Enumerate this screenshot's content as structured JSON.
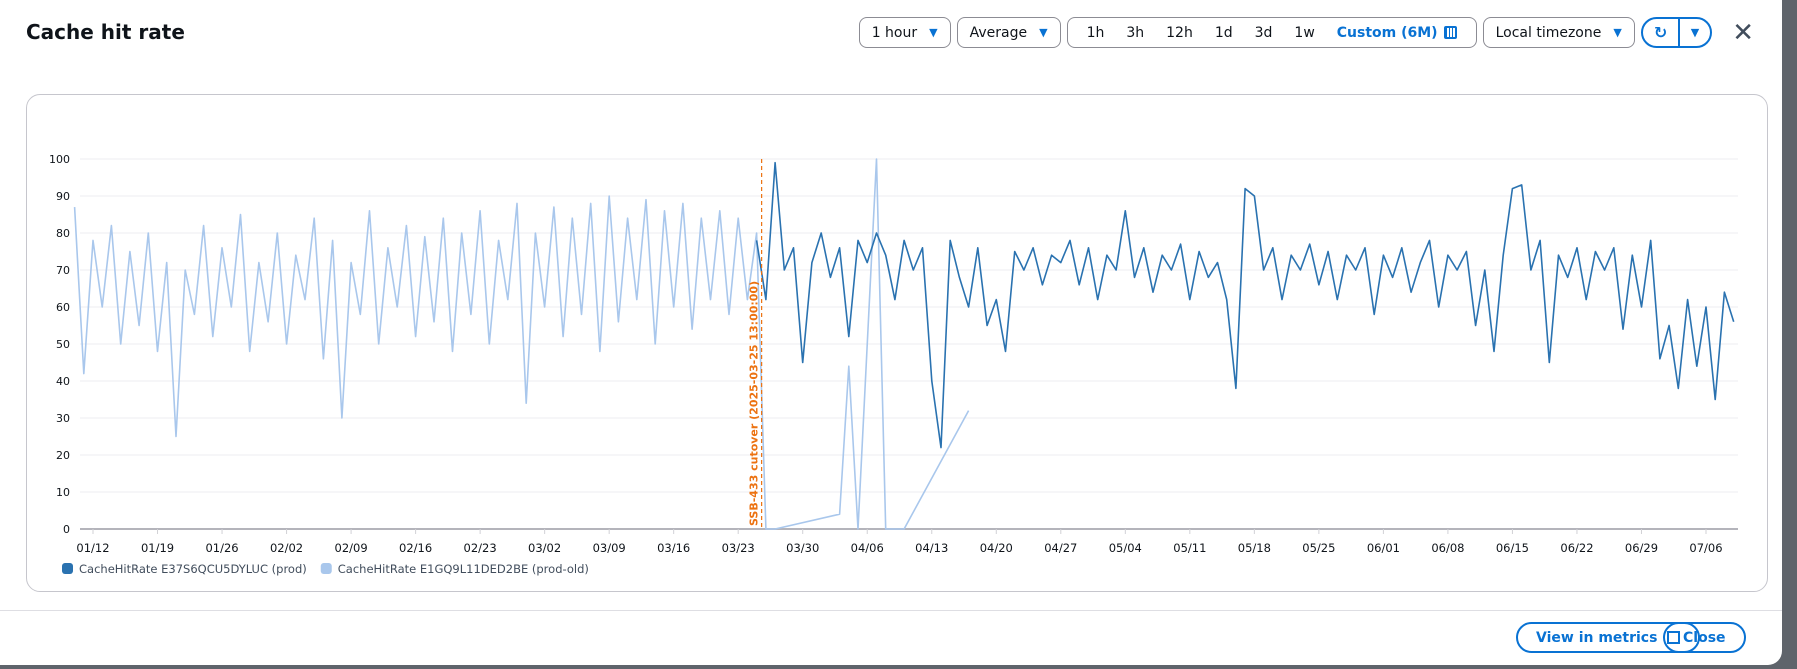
{
  "dialog": {
    "title": "Cache hit rate",
    "period": "1 hour",
    "statistic": "Average",
    "ranges": [
      "1h",
      "3h",
      "12h",
      "1d",
      "3d",
      "1w",
      "Custom (6M)"
    ],
    "active_range": "Custom (6M)",
    "timezone": "Local timezone",
    "view_in_metrics": "View in metrics",
    "close": "Close"
  },
  "colors": {
    "prod": "#2a72b0",
    "prod_old": "#a9c7ec",
    "annotation": "#ec7211",
    "accent": "#0972d3"
  },
  "chart_data": {
    "type": "line",
    "ylim": [
      0,
      100
    ],
    "yticks": [
      0,
      10,
      20,
      30,
      40,
      50,
      60,
      70,
      80,
      90,
      100
    ],
    "grid": true,
    "legend": "bottom-left",
    "xticks": [
      "01/12",
      "01/19",
      "01/26",
      "02/02",
      "02/09",
      "02/16",
      "02/23",
      "03/02",
      "03/09",
      "03/16",
      "03/23",
      "03/30",
      "04/06",
      "04/13",
      "04/20",
      "04/27",
      "05/04",
      "05/11",
      "05/18",
      "05/25",
      "06/01",
      "06/08",
      "06/15",
      "06/22",
      "06/29",
      "07/06"
    ],
    "annotation": {
      "label": "SSB-433 cutover (2025-03-25 13:00:00)",
      "date": "03/25",
      "time": "13:00"
    },
    "series": [
      {
        "name": "CacheHitRate E37S6QCU5DYLUC (prod)",
        "color": "#2a72b0",
        "values": {
          "03/25": 78,
          "03/26": 62,
          "03/27": 99,
          "03/28": 70,
          "03/29": 76,
          "03/30": 45,
          "03/31": 72,
          "04/01": 80,
          "04/02": 68,
          "04/03": 76,
          "04/04": 52,
          "04/05": 78,
          "04/06": 72,
          "04/07": 80,
          "04/08": 74,
          "04/09": 62,
          "04/10": 78,
          "04/11": 70,
          "04/12": 76,
          "04/13": 40,
          "04/14": 22,
          "04/15": 78,
          "04/16": 68,
          "04/17": 60,
          "04/18": 76,
          "04/19": 55,
          "04/20": 62,
          "04/21": 48,
          "04/22": 75,
          "04/23": 70,
          "04/24": 76,
          "04/25": 66,
          "04/26": 74,
          "04/27": 72,
          "04/28": 78,
          "04/29": 66,
          "04/30": 76,
          "05/01": 62,
          "05/02": 74,
          "05/03": 70,
          "05/04": 86,
          "05/05": 68,
          "05/06": 76,
          "05/07": 64,
          "05/08": 74,
          "05/09": 70,
          "05/10": 77,
          "05/11": 62,
          "05/12": 75,
          "05/13": 68,
          "05/14": 72,
          "05/15": 62,
          "05/16": 38,
          "05/17": 92,
          "05/18": 90,
          "05/19": 70,
          "05/20": 76,
          "05/21": 62,
          "05/22": 74,
          "05/23": 70,
          "05/24": 77,
          "05/25": 66,
          "05/26": 75,
          "05/27": 62,
          "05/28": 74,
          "05/29": 70,
          "05/30": 76,
          "05/31": 58,
          "06/01": 74,
          "06/02": 68,
          "06/03": 76,
          "06/04": 64,
          "06/05": 72,
          "06/06": 78,
          "06/07": 60,
          "06/08": 74,
          "06/09": 70,
          "06/10": 75,
          "06/11": 55,
          "06/12": 70,
          "06/13": 48,
          "06/14": 74,
          "06/15": 92,
          "06/16": 93,
          "06/17": 70,
          "06/18": 78,
          "06/19": 45,
          "06/20": 74,
          "06/21": 68,
          "06/22": 76,
          "06/23": 62,
          "06/24": 75,
          "06/25": 70,
          "06/26": 76,
          "06/27": 54,
          "06/28": 74,
          "06/29": 60,
          "06/30": 78,
          "07/01": 46,
          "07/02": 55,
          "07/03": 38,
          "07/04": 62,
          "07/05": 44,
          "07/06": 60,
          "07/07": 35,
          "07/08": 64,
          "07/09": 56
        }
      },
      {
        "name": "CacheHitRate E1GQ9L11DED2BE (prod-old)",
        "color": "#a9c7ec",
        "values": {
          "01/10": 87,
          "01/11": 42,
          "01/12": 78,
          "01/13": 60,
          "01/14": 82,
          "01/15": 50,
          "01/16": 75,
          "01/17": 55,
          "01/18": 80,
          "01/19": 48,
          "01/20": 72,
          "01/21": 25,
          "01/22": 70,
          "01/23": 58,
          "01/24": 82,
          "01/25": 52,
          "01/26": 76,
          "01/27": 60,
          "01/28": 85,
          "01/29": 48,
          "01/30": 72,
          "01/31": 56,
          "02/01": 80,
          "02/02": 50,
          "02/03": 74,
          "02/04": 62,
          "02/05": 84,
          "02/06": 46,
          "02/07": 78,
          "02/08": 30,
          "02/09": 72,
          "02/10": 58,
          "02/11": 86,
          "02/12": 50,
          "02/13": 76,
          "02/14": 60,
          "02/15": 82,
          "02/16": 52,
          "02/17": 79,
          "02/18": 56,
          "02/19": 84,
          "02/20": 48,
          "02/21": 80,
          "02/22": 58,
          "02/23": 86,
          "02/24": 50,
          "02/25": 78,
          "02/26": 62,
          "02/27": 88,
          "02/28": 34,
          "03/01": 80,
          "03/02": 60,
          "03/03": 87,
          "03/04": 52,
          "03/05": 84,
          "03/06": 58,
          "03/07": 88,
          "03/08": 48,
          "03/09": 90,
          "03/10": 56,
          "03/11": 84,
          "03/12": 62,
          "03/13": 89,
          "03/14": 50,
          "03/15": 86,
          "03/16": 60,
          "03/17": 88,
          "03/18": 54,
          "03/19": 84,
          "03/20": 62,
          "03/21": 86,
          "03/22": 58,
          "03/23": 84,
          "03/24": 62,
          "03/25": 80,
          "03/26": 0,
          "03/27": 0,
          "04/03": 4,
          "04/04": 44,
          "04/05": 0,
          "04/07": 100,
          "04/08": 0,
          "04/10": 0,
          "04/17": 32
        }
      }
    ]
  }
}
